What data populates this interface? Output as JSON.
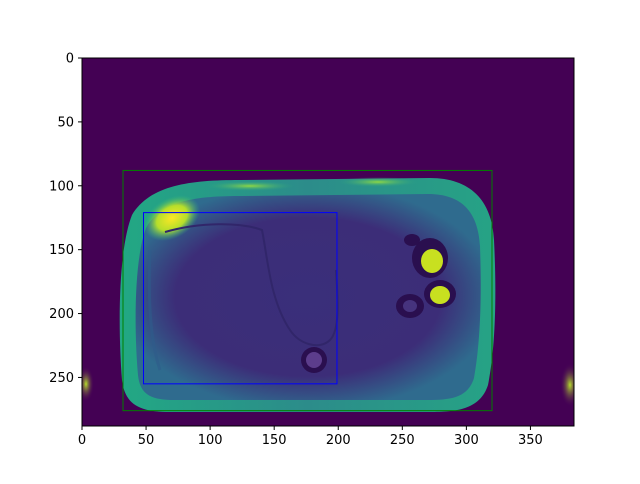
{
  "image": {
    "description_free": true,
    "colormap": "viridis",
    "background_color": "#440154",
    "body_ring_color": "#27a088",
    "body_inner_color": "#3b2a78",
    "bright_spot_color": "#f0e21e",
    "dark_spot_color": "#2a0f4f"
  },
  "axes": {
    "x_ticks": [
      {
        "value": 0,
        "label": "0"
      },
      {
        "value": 50,
        "label": "50"
      },
      {
        "value": 100,
        "label": "100"
      },
      {
        "value": 150,
        "label": "150"
      },
      {
        "value": 200,
        "label": "200"
      },
      {
        "value": 250,
        "label": "250"
      },
      {
        "value": 300,
        "label": "300"
      },
      {
        "value": 350,
        "label": "350"
      }
    ],
    "y_ticks": [
      {
        "value": 0,
        "label": "0"
      },
      {
        "value": 50,
        "label": "50"
      },
      {
        "value": 100,
        "label": "100"
      },
      {
        "value": 150,
        "label": "150"
      },
      {
        "value": 200,
        "label": "200"
      },
      {
        "value": 250,
        "label": "250"
      }
    ],
    "x_range": [
      0,
      384
    ],
    "y_range": [
      288,
      0
    ]
  },
  "boxes": [
    {
      "name": "outer-box",
      "color": "#008000",
      "x0": 32,
      "y0": 88,
      "x1": 320,
      "y1": 276
    },
    {
      "name": "inner-box",
      "color": "#0000ff",
      "x0": 48,
      "y0": 121,
      "x1": 199,
      "y1": 255
    }
  ]
}
